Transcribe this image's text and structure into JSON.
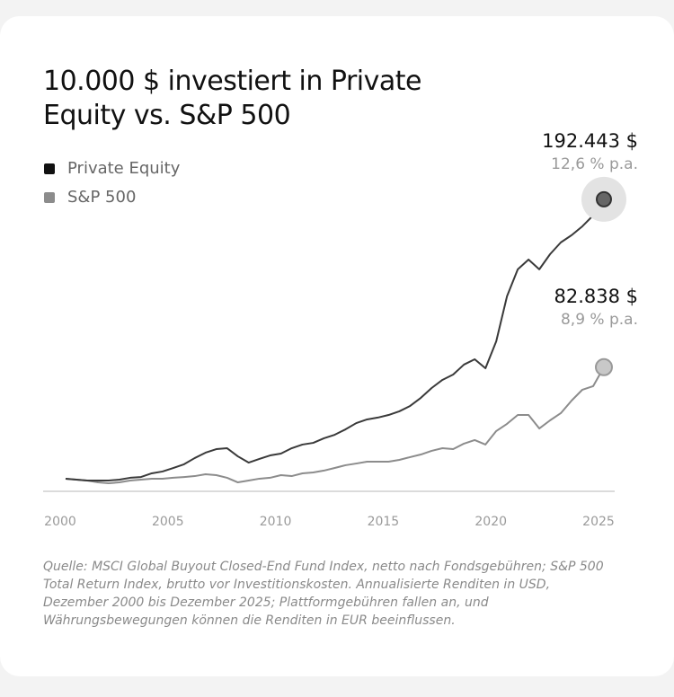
{
  "chart_data": {
    "type": "line",
    "title": "10.000 $ investiert in Private Equity vs. S&P 500",
    "xlim": [
      2000,
      2025
    ],
    "xticks": [
      2000,
      2005,
      2010,
      2015,
      2020,
      2025
    ],
    "ylim": [
      0,
      200000
    ],
    "legend": "top-left",
    "x": [
      2000.25,
      2000.75,
      2001.25,
      2001.75,
      2002.25,
      2002.75,
      2003.25,
      2003.75,
      2004.25,
      2004.75,
      2005.25,
      2005.75,
      2006.25,
      2006.75,
      2007.25,
      2007.75,
      2008.25,
      2008.75,
      2009.25,
      2009.75,
      2010.25,
      2010.75,
      2011.25,
      2011.75,
      2012.25,
      2012.75,
      2013.25,
      2013.75,
      2014.25,
      2014.75,
      2015.25,
      2015.75,
      2016.25,
      2016.75,
      2017.25,
      2017.75,
      2018.25,
      2018.75,
      2019.25,
      2019.75,
      2020.25,
      2020.75,
      2021.25,
      2021.75,
      2022.25,
      2022.75,
      2023.25,
      2023.75,
      2024.25,
      2024.75,
      2025.25
    ],
    "series": [
      {
        "name": "Private Equity",
        "color": "#3a3a3a",
        "legend_color": "#111111",
        "values": [
          10000,
          9400,
          8800,
          8800,
          8800,
          9400,
          10600,
          11100,
          13500,
          14700,
          17000,
          19400,
          23500,
          27000,
          29300,
          29900,
          24600,
          20500,
          22900,
          25200,
          26400,
          29900,
          32300,
          33400,
          36400,
          38700,
          42200,
          46300,
          48700,
          49900,
          51600,
          54000,
          57500,
          62800,
          69200,
          74500,
          78000,
          84500,
          88000,
          82100,
          99700,
          129100,
          146700,
          153100,
          146700,
          156600,
          164300,
          169000,
          174800,
          181900,
          192443
        ],
        "value_labels": [
          null,
          null,
          null,
          null,
          null,
          null,
          null,
          null,
          null,
          null,
          null,
          null,
          null,
          null,
          null,
          null,
          null,
          null,
          null,
          null,
          null,
          null,
          null,
          null,
          null,
          null,
          null,
          null,
          null,
          null,
          null,
          null,
          null,
          null,
          null,
          null,
          null,
          null,
          null,
          null,
          null,
          null,
          null,
          null,
          null,
          null,
          null,
          null,
          null,
          null,
          "192.443 $"
        ],
        "annotation": "12,6 % p.a."
      },
      {
        "name": "S&P 500",
        "color": "#8c8c8c",
        "legend_color": "#8c8c8c",
        "values": [
          10000,
          9400,
          8800,
          7600,
          7000,
          7600,
          8800,
          9400,
          10000,
          10000,
          10600,
          11100,
          11700,
          12900,
          12300,
          10600,
          7600,
          8800,
          10000,
          10600,
          12300,
          11700,
          13500,
          14100,
          15300,
          17000,
          18800,
          19900,
          21100,
          21100,
          21100,
          22300,
          24100,
          25800,
          28200,
          29900,
          29300,
          32900,
          35200,
          32300,
          41100,
          45800,
          51600,
          51600,
          42800,
          48100,
          52800,
          61000,
          68100,
          70400,
          82838
        ],
        "value_labels": [
          null,
          null,
          null,
          null,
          null,
          null,
          null,
          null,
          null,
          null,
          null,
          null,
          null,
          null,
          null,
          null,
          null,
          null,
          null,
          null,
          null,
          null,
          null,
          null,
          null,
          null,
          null,
          null,
          null,
          null,
          null,
          null,
          null,
          null,
          null,
          null,
          null,
          null,
          null,
          null,
          null,
          null,
          null,
          null,
          null,
          null,
          null,
          null,
          null,
          null,
          "82.838 $"
        ],
        "annotation": "8,9 % p.a."
      }
    ],
    "footnote": "Quelle: MSCI Global Buyout Closed-End Fund Index, netto nach Fondsgebühren; S&P 500 Total Return Index, brutto vor Investitionskosten. Annualisierte Renditen in USD, Dezember 2000 bis Dezember 2025; Plattformgebühren fallen an, und Währungsbewegungen können die Renditen in EUR beeinflussen."
  }
}
